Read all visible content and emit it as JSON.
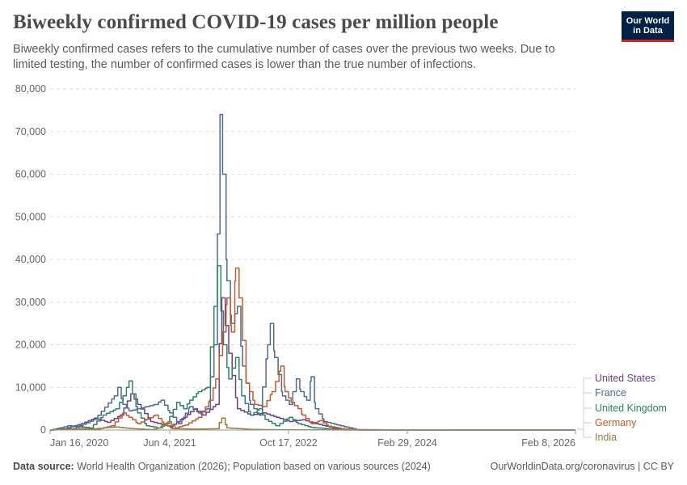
{
  "header": {
    "title": "Biweekly confirmed COVID-19 cases per million people",
    "subtitle": "Biweekly confirmed cases refers to the cumulative number of cases over the previous two weeks. Due to limited testing, the number of confirmed cases is lower than the true number of infections."
  },
  "logo": {
    "line1": "Our World",
    "line2": "in Data"
  },
  "footer": {
    "source_label": "Data source:",
    "source_text": "World Health Organization (2026); Population based on various sources (2024)",
    "right_text": "OurWorldinData.org/coronavirus | CC BY"
  },
  "chart_data": {
    "type": "line",
    "title": "Biweekly confirmed COVID-19 cases per million people",
    "xlabel": "",
    "ylabel": "",
    "ylim": [
      0,
      80000
    ],
    "y_ticks": [
      0,
      10000,
      20000,
      30000,
      40000,
      50000,
      60000,
      70000,
      80000
    ],
    "y_tick_labels": [
      "0",
      "10,000",
      "20,000",
      "30,000",
      "40,000",
      "50,000",
      "60,000",
      "70,000",
      "80,000"
    ],
    "x_tick_labels": [
      "Jan 16, 2020",
      "Jun 4, 2021",
      "Oct 17, 2022",
      "Feb 29, 2024",
      "Feb 8, 2026"
    ],
    "x_tick_positions": [
      2020.04,
      2021.42,
      2022.79,
      2024.16,
      2026.1
    ],
    "xlim": [
      2020.04,
      2026.1
    ],
    "grid": true,
    "legend_position": "right",
    "series": [
      {
        "name": "United States",
        "color": "#6d3e91",
        "points": [
          [
            2020.04,
            0
          ],
          [
            2020.2,
            300
          ],
          [
            2020.4,
            1500
          ],
          [
            2020.55,
            2800
          ],
          [
            2020.7,
            1800
          ],
          [
            2020.85,
            3500
          ],
          [
            2020.97,
            8500
          ],
          [
            2021.05,
            6000
          ],
          [
            2021.2,
            2000
          ],
          [
            2021.35,
            1200
          ],
          [
            2021.42,
            800
          ],
          [
            2021.58,
            3000
          ],
          [
            2021.7,
            5000
          ],
          [
            2021.8,
            3500
          ],
          [
            2021.95,
            6000
          ],
          [
            2022.02,
            31000
          ],
          [
            2022.1,
            18000
          ],
          [
            2022.2,
            5000
          ],
          [
            2022.35,
            3500
          ],
          [
            2022.5,
            4000
          ],
          [
            2022.65,
            3000
          ],
          [
            2022.8,
            2000
          ],
          [
            2022.95,
            2400
          ],
          [
            2023.1,
            1500
          ],
          [
            2023.3,
            500
          ],
          [
            2023.4,
            100
          ],
          [
            2023.6,
            0
          ],
          [
            2026.1,
            0
          ]
        ]
      },
      {
        "name": "France",
        "color": "#4c6a9c",
        "points": [
          [
            2020.04,
            0
          ],
          [
            2020.3,
            300
          ],
          [
            2020.55,
            2500
          ],
          [
            2020.78,
            8000
          ],
          [
            2020.82,
            10000
          ],
          [
            2020.88,
            6000
          ],
          [
            2020.95,
            4500
          ],
          [
            2021.05,
            5000
          ],
          [
            2021.15,
            5500
          ],
          [
            2021.25,
            6000
          ],
          [
            2021.32,
            7000
          ],
          [
            2021.42,
            4000
          ],
          [
            2021.52,
            1500
          ],
          [
            2021.65,
            5500
          ],
          [
            2021.75,
            4000
          ],
          [
            2021.85,
            5000
          ],
          [
            2021.93,
            20000
          ],
          [
            2021.97,
            46000
          ],
          [
            2022.0,
            74000
          ],
          [
            2022.03,
            60000
          ],
          [
            2022.08,
            35000
          ],
          [
            2022.13,
            25000
          ],
          [
            2022.2,
            29000
          ],
          [
            2022.26,
            15000
          ],
          [
            2022.35,
            6000
          ],
          [
            2022.45,
            3500
          ],
          [
            2022.55,
            20000
          ],
          [
            2022.58,
            25000
          ],
          [
            2022.63,
            17000
          ],
          [
            2022.72,
            8000
          ],
          [
            2022.8,
            6000
          ],
          [
            2022.88,
            12000
          ],
          [
            2022.93,
            9000
          ],
          [
            2023.0,
            7000
          ],
          [
            2023.05,
            12500
          ],
          [
            2023.1,
            5000
          ],
          [
            2023.2,
            2000
          ],
          [
            2023.35,
            1200
          ],
          [
            2023.45,
            700
          ],
          [
            2023.6,
            0
          ],
          [
            2026.1,
            0
          ]
        ]
      },
      {
        "name": "United Kingdom",
        "color": "#2c8465",
        "points": [
          [
            2020.04,
            0
          ],
          [
            2020.25,
            1000
          ],
          [
            2020.5,
            500
          ],
          [
            2020.65,
            3500
          ],
          [
            2020.8,
            5000
          ],
          [
            2020.88,
            8000
          ],
          [
            2020.95,
            11500
          ],
          [
            2021.05,
            4000
          ],
          [
            2021.15,
            1000
          ],
          [
            2021.28,
            500
          ],
          [
            2021.38,
            1500
          ],
          [
            2021.5,
            6500
          ],
          [
            2021.58,
            5000
          ],
          [
            2021.65,
            7000
          ],
          [
            2021.75,
            9000
          ],
          [
            2021.85,
            10000
          ],
          [
            2021.97,
            38500
          ],
          [
            2022.04,
            20000
          ],
          [
            2022.1,
            12000
          ],
          [
            2022.18,
            17000
          ],
          [
            2022.25,
            8000
          ],
          [
            2022.35,
            3500
          ],
          [
            2022.45,
            5000
          ],
          [
            2022.52,
            2500
          ],
          [
            2022.65,
            1000
          ],
          [
            2022.8,
            3000
          ],
          [
            2022.9,
            1500
          ],
          [
            2023.05,
            600
          ],
          [
            2023.3,
            200
          ],
          [
            2023.6,
            100
          ],
          [
            2024.0,
            50
          ],
          [
            2026.1,
            0
          ]
        ]
      },
      {
        "name": "Germany",
        "color": "#c15c2c",
        "points": [
          [
            2020.04,
            0
          ],
          [
            2020.25,
            200
          ],
          [
            2020.4,
            300
          ],
          [
            2020.58,
            200
          ],
          [
            2020.75,
            1000
          ],
          [
            2020.88,
            4000
          ],
          [
            2020.95,
            3000
          ],
          [
            2021.05,
            1500
          ],
          [
            2021.15,
            2500
          ],
          [
            2021.25,
            3500
          ],
          [
            2021.35,
            1500
          ],
          [
            2021.45,
            300
          ],
          [
            2021.6,
            1200
          ],
          [
            2021.75,
            3000
          ],
          [
            2021.88,
            7000
          ],
          [
            2021.95,
            12000
          ],
          [
            2022.03,
            23000
          ],
          [
            2022.08,
            31000
          ],
          [
            2022.13,
            23000
          ],
          [
            2022.18,
            38000
          ],
          [
            2022.22,
            31000
          ],
          [
            2022.3,
            11000
          ],
          [
            2022.4,
            6000
          ],
          [
            2022.5,
            5500
          ],
          [
            2022.6,
            9000
          ],
          [
            2022.7,
            15000
          ],
          [
            2022.75,
            9000
          ],
          [
            2022.82,
            6500
          ],
          [
            2022.9,
            5000
          ],
          [
            2022.95,
            3500
          ],
          [
            2023.05,
            1500
          ],
          [
            2023.15,
            2200
          ],
          [
            2023.25,
            900
          ],
          [
            2023.4,
            300
          ],
          [
            2023.6,
            50
          ],
          [
            2026.1,
            0
          ]
        ]
      },
      {
        "name": "India",
        "color": "#9a7a3c",
        "points": [
          [
            2020.04,
            0
          ],
          [
            2020.5,
            200
          ],
          [
            2020.7,
            600
          ],
          [
            2020.8,
            700
          ],
          [
            2021.0,
            300
          ],
          [
            2021.2,
            100
          ],
          [
            2021.3,
            500
          ],
          [
            2021.4,
            2000
          ],
          [
            2021.48,
            300
          ],
          [
            2021.7,
            200
          ],
          [
            2021.95,
            300
          ],
          [
            2022.02,
            2800
          ],
          [
            2022.08,
            500
          ],
          [
            2022.3,
            200
          ],
          [
            2022.5,
            100
          ],
          [
            2023.0,
            50
          ],
          [
            2023.5,
            0
          ],
          [
            2026.1,
            0
          ]
        ]
      }
    ]
  }
}
